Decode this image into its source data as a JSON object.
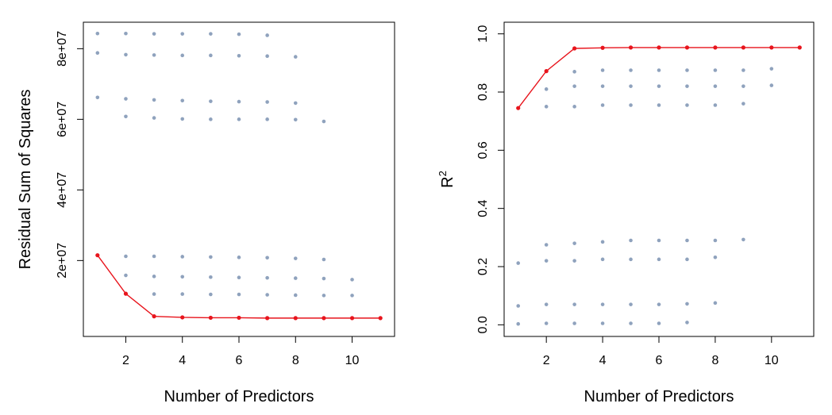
{
  "colors": {
    "points": "#8fa2bd",
    "best": "#e8141c",
    "frame": "#000000"
  },
  "chart_data": [
    {
      "type": "scatter",
      "xlabel": "Number of Predictors",
      "ylabel": "Residual Sum of Squares",
      "xlim": [
        0.5,
        11.5
      ],
      "ylim": [
        -1500000,
        87500000
      ],
      "x_ticks": [
        2,
        4,
        6,
        8,
        10
      ],
      "y_ticks": [
        20000000,
        40000000,
        60000000,
        80000000
      ],
      "x_tick_labels": [
        "2",
        "4",
        "6",
        "8",
        "10"
      ],
      "y_tick_labels": [
        "2e+07",
        "4e+07",
        "6e+07",
        "8e+07"
      ],
      "grid": false,
      "legend": "none",
      "series": [
        {
          "style": "points",
          "points": [
            [
              1,
              84300000
            ],
            [
              1,
              78800000
            ],
            [
              1,
              66200000
            ],
            [
              1,
              21500000
            ],
            [
              2,
              84300000
            ],
            [
              2,
              78300000
            ],
            [
              2,
              65800000
            ],
            [
              2,
              60800000
            ],
            [
              2,
              21200000
            ],
            [
              2,
              15800000
            ],
            [
              2,
              10600000
            ],
            [
              3,
              84200000
            ],
            [
              3,
              78200000
            ],
            [
              3,
              65500000
            ],
            [
              3,
              60400000
            ],
            [
              3,
              21200000
            ],
            [
              3,
              15500000
            ],
            [
              3,
              10500000
            ],
            [
              3,
              4200000
            ],
            [
              4,
              84200000
            ],
            [
              4,
              78100000
            ],
            [
              4,
              65300000
            ],
            [
              4,
              60100000
            ],
            [
              4,
              21100000
            ],
            [
              4,
              15400000
            ],
            [
              4,
              10500000
            ],
            [
              4,
              3900000
            ],
            [
              5,
              84200000
            ],
            [
              5,
              78100000
            ],
            [
              5,
              65100000
            ],
            [
              5,
              60000000
            ],
            [
              5,
              21000000
            ],
            [
              5,
              15300000
            ],
            [
              5,
              10400000
            ],
            [
              5,
              3800000
            ],
            [
              6,
              84100000
            ],
            [
              6,
              78000000
            ],
            [
              6,
              65000000
            ],
            [
              6,
              60000000
            ],
            [
              6,
              20900000
            ],
            [
              6,
              15200000
            ],
            [
              6,
              10400000
            ],
            [
              6,
              3800000
            ],
            [
              7,
              83800000
            ],
            [
              7,
              77900000
            ],
            [
              7,
              64900000
            ],
            [
              7,
              60000000
            ],
            [
              7,
              20800000
            ],
            [
              7,
              15100000
            ],
            [
              7,
              10300000
            ],
            [
              7,
              3700000
            ],
            [
              8,
              77700000
            ],
            [
              8,
              64600000
            ],
            [
              8,
              59900000
            ],
            [
              8,
              20600000
            ],
            [
              8,
              15000000
            ],
            [
              8,
              10200000
            ],
            [
              8,
              3700000
            ],
            [
              9,
              59400000
            ],
            [
              9,
              20300000
            ],
            [
              9,
              14900000
            ],
            [
              9,
              10100000
            ],
            [
              9,
              3700000
            ],
            [
              10,
              14600000
            ],
            [
              10,
              10100000
            ],
            [
              10,
              3700000
            ],
            [
              11,
              3700000
            ]
          ]
        },
        {
          "style": "line",
          "x": [
            1,
            2,
            3,
            4,
            5,
            6,
            7,
            8,
            9,
            10,
            11
          ],
          "values": [
            21500000,
            10600000,
            4200000,
            3900000,
            3800000,
            3800000,
            3700000,
            3700000,
            3700000,
            3700000,
            3700000
          ]
        }
      ]
    },
    {
      "type": "scatter",
      "xlabel": "Number of Predictors",
      "ylabel_base": "R",
      "ylabel_sup": "2",
      "xlim": [
        0.5,
        11.5
      ],
      "ylim": [
        -0.04,
        1.04
      ],
      "x_ticks": [
        2,
        4,
        6,
        8,
        10
      ],
      "y_ticks": [
        0.0,
        0.2,
        0.4,
        0.6,
        0.8,
        1.0
      ],
      "x_tick_labels": [
        "2",
        "4",
        "6",
        "8",
        "10"
      ],
      "y_tick_labels": [
        "0.0",
        "0.2",
        "0.4",
        "0.6",
        "0.8",
        "1.0"
      ],
      "grid": false,
      "legend": "none",
      "series": [
        {
          "style": "points",
          "points": [
            [
              1,
              0.745
            ],
            [
              1,
              0.212
            ],
            [
              1,
              0.065
            ],
            [
              1,
              0.003
            ],
            [
              2,
              0.872
            ],
            [
              2,
              0.81
            ],
            [
              2,
              0.75
            ],
            [
              2,
              0.275
            ],
            [
              2,
              0.22
            ],
            [
              2,
              0.07
            ],
            [
              2,
              0.005
            ],
            [
              3,
              0.95
            ],
            [
              3,
              0.87
            ],
            [
              3,
              0.82
            ],
            [
              3,
              0.75
            ],
            [
              3,
              0.28
            ],
            [
              3,
              0.22
            ],
            [
              3,
              0.07
            ],
            [
              3,
              0.005
            ],
            [
              4,
              0.952
            ],
            [
              4,
              0.875
            ],
            [
              4,
              0.82
            ],
            [
              4,
              0.755
            ],
            [
              4,
              0.285
            ],
            [
              4,
              0.225
            ],
            [
              4,
              0.07
            ],
            [
              4,
              0.005
            ],
            [
              5,
              0.953
            ],
            [
              5,
              0.875
            ],
            [
              5,
              0.82
            ],
            [
              5,
              0.755
            ],
            [
              5,
              0.29
            ],
            [
              5,
              0.225
            ],
            [
              5,
              0.07
            ],
            [
              5,
              0.005
            ],
            [
              6,
              0.953
            ],
            [
              6,
              0.875
            ],
            [
              6,
              0.82
            ],
            [
              6,
              0.755
            ],
            [
              6,
              0.29
            ],
            [
              6,
              0.225
            ],
            [
              6,
              0.07
            ],
            [
              6,
              0.005
            ],
            [
              7,
              0.953
            ],
            [
              7,
              0.875
            ],
            [
              7,
              0.82
            ],
            [
              7,
              0.755
            ],
            [
              7,
              0.29
            ],
            [
              7,
              0.225
            ],
            [
              7,
              0.072
            ],
            [
              7,
              0.008
            ],
            [
              8,
              0.953
            ],
            [
              8,
              0.875
            ],
            [
              8,
              0.82
            ],
            [
              8,
              0.755
            ],
            [
              8,
              0.29
            ],
            [
              8,
              0.232
            ],
            [
              8,
              0.075
            ],
            [
              9,
              0.953
            ],
            [
              9,
              0.875
            ],
            [
              9,
              0.82
            ],
            [
              9,
              0.76
            ],
            [
              9,
              0.293
            ],
            [
              10,
              0.953
            ],
            [
              10,
              0.88
            ],
            [
              10,
              0.823
            ],
            [
              11,
              0.953
            ]
          ]
        },
        {
          "style": "line",
          "x": [
            1,
            2,
            3,
            4,
            5,
            6,
            7,
            8,
            9,
            10,
            11
          ],
          "values": [
            0.745,
            0.872,
            0.95,
            0.952,
            0.953,
            0.953,
            0.953,
            0.953,
            0.953,
            0.953,
            0.953
          ]
        }
      ]
    }
  ]
}
